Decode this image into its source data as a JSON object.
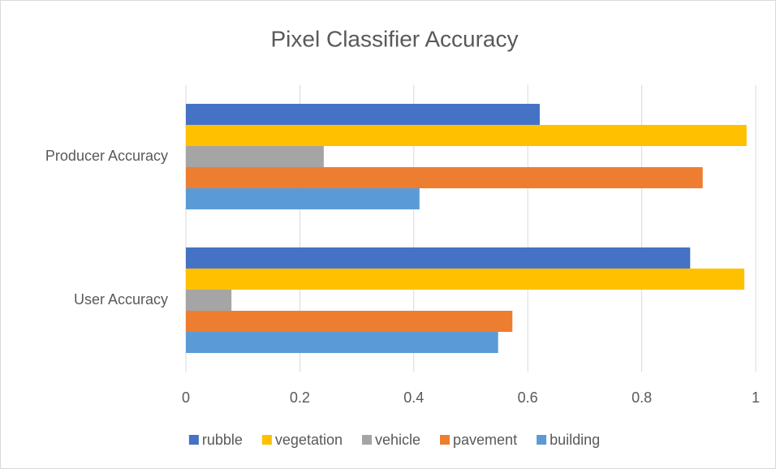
{
  "chart_data": {
    "type": "bar",
    "orientation": "horizontal",
    "title": "Pixel Classifier Accuracy",
    "categories": [
      "Producer Accuracy",
      "User Accuracy"
    ],
    "series": [
      {
        "name": "rubble",
        "color": "#4472c4",
        "values": [
          0.621,
          0.885
        ]
      },
      {
        "name": "vegetation",
        "color": "#ffc000",
        "values": [
          0.984,
          0.98
        ]
      },
      {
        "name": "vehicle",
        "color": "#a5a5a5",
        "values": [
          0.242,
          0.08
        ]
      },
      {
        "name": "pavement",
        "color": "#ed7d31",
        "values": [
          0.907,
          0.573
        ]
      },
      {
        "name": "building",
        "color": "#5b9bd5",
        "values": [
          0.41,
          0.548
        ]
      }
    ],
    "xlim": [
      0,
      1
    ],
    "xticks": [
      0,
      0.2,
      0.4,
      0.6,
      0.8,
      1
    ],
    "grid": true,
    "legend": "bottom"
  }
}
